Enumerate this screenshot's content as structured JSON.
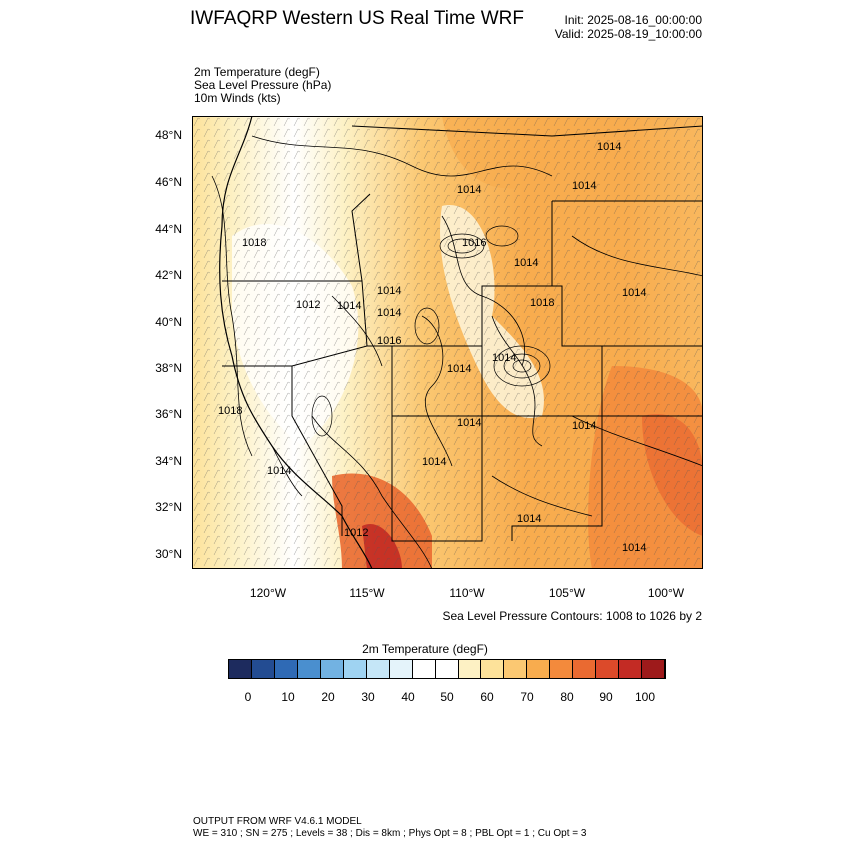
{
  "header": {
    "title": "IWFAQRP Western US Real Time WRF",
    "init": "Init: 2025-08-16_00:00:00",
    "valid": "Valid: 2025-08-19_10:00:00"
  },
  "fields": {
    "temp": "2m Temperature   (degF)",
    "slp": "Sea Level Pressure   (hPa)",
    "wind": "10m Winds   (kts)"
  },
  "map": {
    "lat_labels": [
      "48°N",
      "46°N",
      "44°N",
      "42°N",
      "40°N",
      "38°N",
      "36°N",
      "34°N",
      "32°N",
      "30°N"
    ],
    "lon_labels": [
      "120°W",
      "115°W",
      "110°W",
      "105°W",
      "100°W"
    ],
    "slp_labels": [
      "1014",
      "1014",
      "1014",
      "1018",
      "1016",
      "1014",
      "1012",
      "1014",
      "1014",
      "1014",
      "1014",
      "1016",
      "1018",
      "1014",
      "1014",
      "1014",
      "1014",
      "1018",
      "1014",
      "1014",
      "1014",
      "1012",
      "1014"
    ]
  },
  "contour_note": "Sea Level Pressure Contours: 1008 to 1026 by 2",
  "colorbar": {
    "title": "2m Temperature  (degF)",
    "colors": [
      "#1d2b5e",
      "#234c92",
      "#2f6ab5",
      "#4a8fcf",
      "#72b2e2",
      "#9fd3f2",
      "#c5e6f7",
      "#e4f3fa",
      "#ffffff",
      "#ffffff",
      "#fdf1c4",
      "#fde29a",
      "#fbc872",
      "#f8ac4e",
      "#f38a3c",
      "#ea6a31",
      "#dc4a2a",
      "#c32b24",
      "#9e1a1b"
    ],
    "ticks": [
      "0",
      "10",
      "20",
      "30",
      "40",
      "50",
      "60",
      "70",
      "80",
      "90",
      "100"
    ]
  },
  "footer": {
    "line1": "OUTPUT FROM WRF V4.6.1 MODEL",
    "line2": "WE = 310 ; SN = 275 ; Levels = 38 ; Dis = 8km ; Phys Opt = 8 ; PBL Opt = 1 ; Cu Opt = 3"
  }
}
